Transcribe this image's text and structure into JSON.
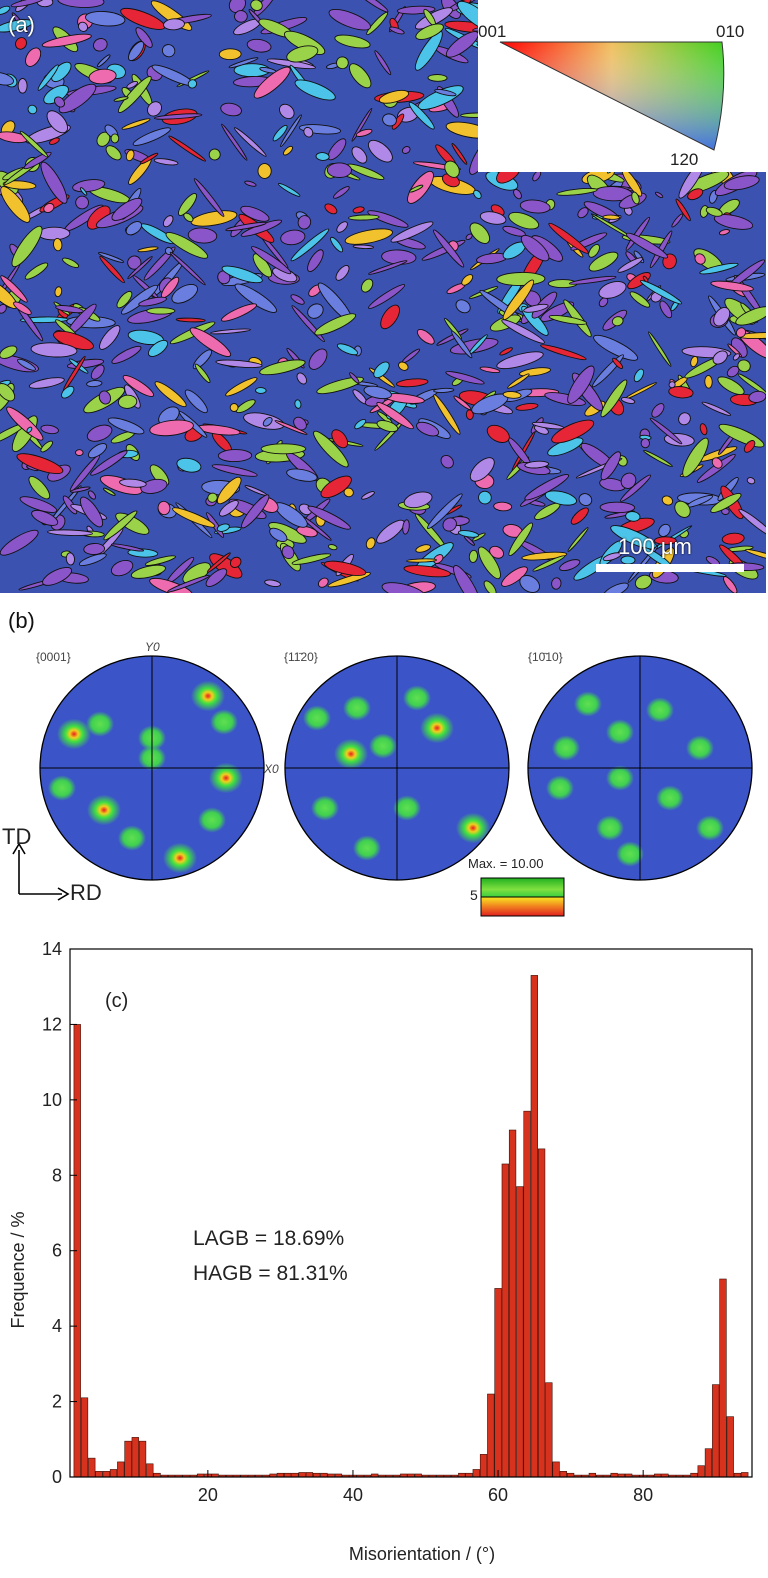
{
  "panel_a": {
    "label": "(a)",
    "legend": {
      "corner_001": "001",
      "corner_010": "010",
      "corner_120": "120"
    },
    "scale_bar": "100 μm",
    "colors": {
      "dominant": "#3b52b0",
      "purple": "#8a55c8",
      "green": "#9ad24a",
      "yellow": "#f2c22e",
      "red": "#e62636",
      "pink": "#ef6bb0",
      "cyan": "#4cc3e8",
      "boundary": "#111111"
    }
  },
  "panel_b": {
    "label": "(b)",
    "figures": [
      {
        "label": "{0001}"
      },
      {
        "label": "{11̄20}"
      },
      {
        "label": "{10̄10}"
      }
    ],
    "axis_y": "Y0",
    "axis_x": "X0",
    "direction_td": "TD",
    "direction_rd": "RD",
    "colorbar_max": "Max. = 10.00",
    "colorbar_mid": "5"
  },
  "chart_data": {
    "type": "bar",
    "panel_label": "(c)",
    "xlabel": "Misorientation / (°)",
    "ylabel": "Frequence / %",
    "xlim": [
      1,
      95
    ],
    "ylim": [
      0,
      14
    ],
    "xticks": [
      20,
      40,
      60,
      80
    ],
    "yticks": [
      0,
      2,
      4,
      6,
      8,
      10,
      12,
      14
    ],
    "bin_width": 1,
    "annotations": [
      "LAGB = 18.69%",
      "HAGB = 81.31%"
    ],
    "bar_color": "#d7321e",
    "x": [
      2,
      3,
      4,
      5,
      6,
      7,
      8,
      9,
      10,
      11,
      12,
      13,
      14,
      15,
      16,
      17,
      18,
      19,
      20,
      21,
      22,
      23,
      24,
      25,
      26,
      27,
      28,
      29,
      30,
      31,
      32,
      33,
      34,
      35,
      36,
      37,
      38,
      39,
      40,
      41,
      42,
      43,
      44,
      45,
      46,
      47,
      48,
      49,
      50,
      51,
      52,
      53,
      54,
      55,
      56,
      57,
      58,
      59,
      60,
      61,
      62,
      63,
      64,
      65,
      66,
      67,
      68,
      69,
      70,
      71,
      72,
      73,
      74,
      75,
      76,
      77,
      78,
      79,
      80,
      81,
      82,
      83,
      84,
      85,
      86,
      87,
      88,
      89,
      90,
      91,
      92,
      93,
      94
    ],
    "values": [
      12.0,
      2.1,
      0.5,
      0.15,
      0.15,
      0.2,
      0.4,
      0.95,
      1.05,
      0.95,
      0.35,
      0.1,
      0.05,
      0.05,
      0.05,
      0.05,
      0.05,
      0.08,
      0.08,
      0.08,
      0.05,
      0.05,
      0.05,
      0.05,
      0.05,
      0.05,
      0.05,
      0.08,
      0.1,
      0.1,
      0.1,
      0.12,
      0.12,
      0.1,
      0.1,
      0.08,
      0.08,
      0.05,
      0.05,
      0.05,
      0.05,
      0.08,
      0.05,
      0.05,
      0.05,
      0.08,
      0.08,
      0.08,
      0.05,
      0.05,
      0.05,
      0.05,
      0.05,
      0.1,
      0.1,
      0.2,
      0.6,
      2.2,
      5.0,
      8.3,
      9.2,
      7.7,
      9.7,
      13.3,
      8.7,
      2.5,
      0.4,
      0.15,
      0.1,
      0.05,
      0.05,
      0.1,
      0.05,
      0.05,
      0.1,
      0.08,
      0.08,
      0.05,
      0.05,
      0.05,
      0.08,
      0.08,
      0.05,
      0.05,
      0.05,
      0.1,
      0.3,
      0.75,
      2.45,
      5.25,
      1.6,
      0.1,
      0.12
    ]
  }
}
